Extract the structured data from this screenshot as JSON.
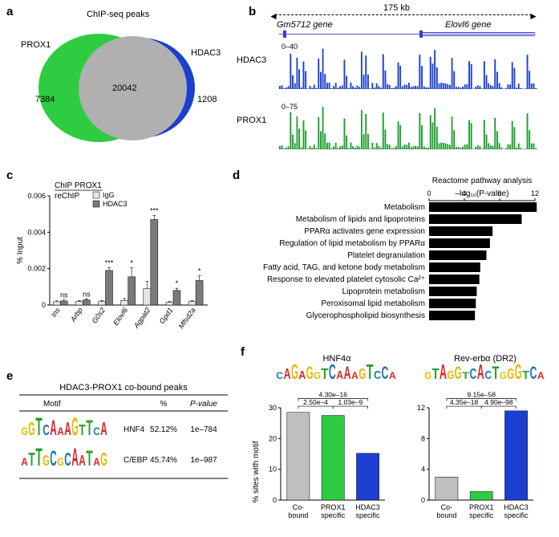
{
  "a": {
    "title": "ChIP-seq peaks",
    "left_label": "PROX1",
    "right_label": "HDAC3",
    "left_only": "7384",
    "overlap": "20042",
    "right_only": "1208",
    "left_color": "#2ecc40",
    "right_color": "#1b3fd1",
    "overlap_color": "#b0b0b0"
  },
  "b": {
    "span_label": "175 kb",
    "left_gene": "Gm5712 gene",
    "right_gene": "Elovl6 gene",
    "tracks": [
      {
        "name": "HDAC3",
        "scale": "0–40",
        "color": "#1b3fd1"
      },
      {
        "name": "PROX1",
        "scale": "0–75",
        "color": "#1e9e2d"
      }
    ]
  },
  "c": {
    "title_l1": "ChIP PROX1",
    "title_l2": "reChIP",
    "legend": [
      "IgG",
      "HDAC3"
    ],
    "ylabel": "% Input",
    "ylim": [
      0,
      0.006
    ],
    "ytick_step": 0.002,
    "categories": [
      "Ins",
      "Arbp",
      "G0s2",
      "Elovl6",
      "Agpat2",
      "Gpd1",
      "Mfsd2a"
    ],
    "igG": [
      0.00018,
      0.0002,
      0.0002,
      0.00025,
      0.0009,
      0.00015,
      0.0002
    ],
    "hdac3": [
      0.00022,
      0.00028,
      0.0019,
      0.00155,
      0.0047,
      0.0008,
      0.00135
    ],
    "sig": [
      "ns",
      "ns",
      "***",
      "*",
      "***",
      "*",
      "*"
    ],
    "err_ig": [
      5e-05,
      5e-05,
      5e-05,
      0.0001,
      0.0004,
      5e-05,
      5e-05
    ],
    "err_hd": [
      6e-05,
      6e-05,
      0.00015,
      0.0005,
      0.00022,
      0.00012,
      0.00025
    ],
    "colors": {
      "igG": "#e6e6e6",
      "hdac3": "#7a7a7a"
    }
  },
  "d": {
    "title": "Reactome pathway analysis",
    "xlabel": "–log₁₀(P-value)",
    "xlim": [
      0,
      12
    ],
    "xtick_step": 4,
    "bar_color": "#000000",
    "items": [
      {
        "label": "Metabolism",
        "value": 12.2
      },
      {
        "label": "Metabolism of lipids and lipoproteins",
        "value": 10.5
      },
      {
        "label": "PPARα activates gene expression",
        "value": 7.2
      },
      {
        "label": "Regulation of lipid metabolism by PPARα",
        "value": 6.9
      },
      {
        "label": "Platelet degranulation",
        "value": 6.5
      },
      {
        "label": "Fatty acid, TAG, and ketone body metabolism",
        "value": 5.8
      },
      {
        "label": "Response to elevated platelet cytosolic Ca²⁺",
        "value": 5.7
      },
      {
        "label": "Lipoprotein metabolism",
        "value": 5.4
      },
      {
        "label": "Peroxisomal lipid metabolism",
        "value": 5.3
      },
      {
        "label": "Glycerophospholipid biosynthesis",
        "value": 5.2
      }
    ]
  },
  "e": {
    "title": "HDAC3-PROX1 co-bound peaks",
    "headers": [
      "Motif",
      "",
      "%",
      "P-value"
    ],
    "rows": [
      {
        "seq": "GGTCAAAGTTCA",
        "name": "HNF4",
        "pct": "52.12%",
        "pval": "1e–784"
      },
      {
        "seq": "ATTGCGCAATAG",
        "name": "C/EBP",
        "pct": "45.74%",
        "pval": "1e–987"
      }
    ]
  },
  "f": {
    "ylabel": "% sites with motif",
    "categories": [
      "Co-\nbound",
      "PROX1\nspecific",
      "HDAC3\nspecific"
    ],
    "colors": [
      "#bfbfbf",
      "#2ecc40",
      "#1b3fd1"
    ],
    "charts": [
      {
        "title": "HNF4α",
        "seq": "CAGAGGTCAAAGTCCA",
        "ylim": [
          0,
          30
        ],
        "ytick_step": 10,
        "values": [
          28.5,
          27.5,
          15.2
        ],
        "brackets": [
          {
            "from": 0,
            "to": 2,
            "label": "4.30e–16",
            "y": 33
          },
          {
            "from": 0,
            "to": 1,
            "label": "2.50e–4",
            "y": 30.5
          },
          {
            "from": 1,
            "to": 2,
            "label": "1.03e–9",
            "y": 30.5
          }
        ]
      },
      {
        "title": "Rev-erbα (DR2)",
        "seq": "GTAGGTCACTGGGTCA",
        "ylim": [
          0,
          12
        ],
        "ytick_step": 4,
        "values": [
          3.0,
          1.1,
          11.6
        ],
        "brackets": [
          {
            "from": 0,
            "to": 2,
            "label": "9.15e–58",
            "y": 13.2
          },
          {
            "from": 0,
            "to": 1,
            "label": "4.35e–18",
            "y": 12.2
          },
          {
            "from": 1,
            "to": 2,
            "label": "4.90e–98",
            "y": 12.2
          }
        ]
      }
    ]
  }
}
